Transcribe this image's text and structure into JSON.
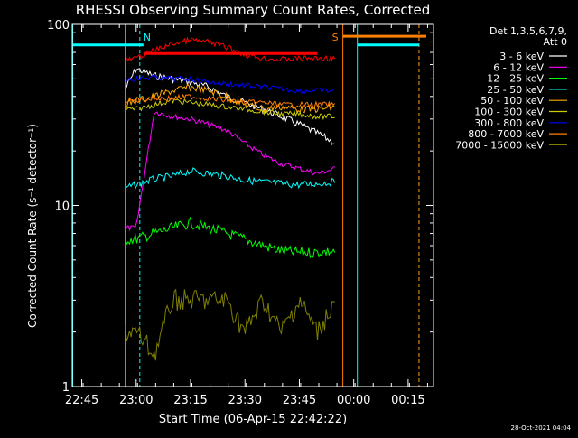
{
  "chart_data": {
    "type": "line",
    "title": "RHESSI Observing Summary Count Rates, Corrected",
    "xlabel": "Start Time (06-Apr-15 22:42:22)",
    "ylabel": "Corrected Count Rate (s⁻¹ detector⁻¹)",
    "yscale": "log",
    "ylim": [
      1,
      100
    ],
    "xlim": [
      "22:42:22",
      "00:22:00"
    ],
    "x_ticks": [
      "22:45",
      "23:00",
      "23:15",
      "23:30",
      "23:45",
      "00:00",
      "00:15"
    ],
    "y_ticks": [
      "1",
      "10",
      "100"
    ],
    "legend_header": [
      "Det 1,3,5,6,7,9,",
      "Att 0"
    ],
    "legend_position": "top-right",
    "footer_date": "28-Oct-2021 04:04",
    "markers": [
      {
        "label": "N",
        "color": "#00ffff",
        "time": "23:01"
      },
      {
        "label": "S",
        "color": "#ff8000",
        "time": "23:57"
      }
    ],
    "vertical_lines": [
      {
        "time": "22:42:30",
        "color": "#00ffff",
        "style": "solid"
      },
      {
        "time": "22:57",
        "color": "#00ffff",
        "style": "solid"
      },
      {
        "time": "22:57",
        "color": "#ff8000",
        "style": "solid"
      },
      {
        "time": "23:01",
        "color": "#00ffff",
        "style": "dashed"
      },
      {
        "time": "23:57",
        "color": "#ff8000",
        "style": "solid"
      },
      {
        "time": "00:01",
        "color": "#00ffff",
        "style": "solid"
      },
      {
        "time": "00:18",
        "color": "#00ffff",
        "style": "dashed"
      },
      {
        "time": "00:18",
        "color": "#ff8000",
        "style": "dashed"
      }
    ],
    "flags": [
      {
        "color": "#00ffff",
        "y": 77,
        "from": "22:42:30",
        "to": "23:02"
      },
      {
        "color": "#00ffff",
        "y": 77,
        "from": "00:01",
        "to": "00:18"
      },
      {
        "color": "#ff8000",
        "y": 86,
        "from": "23:57",
        "to": "00:20"
      },
      {
        "color": "#ff0000",
        "y": 69,
        "from": "23:02",
        "to": "23:50"
      }
    ],
    "series": [
      {
        "name": "3 - 6 keV",
        "color": "#ffffff",
        "x": [
          "22:57",
          "23:00",
          "23:05",
          "23:10",
          "23:15",
          "23:20",
          "23:25",
          "23:30",
          "23:35",
          "23:40",
          "23:45",
          "23:50",
          "23:55"
        ],
        "y": [
          44,
          57,
          52,
          50,
          48,
          45,
          40,
          37,
          34,
          31,
          28,
          25,
          22
        ]
      },
      {
        "name": "6 - 12 keV",
        "color": "#ff00ff",
        "x": [
          "22:57",
          "23:00",
          "23:05",
          "23:10",
          "23:15",
          "23:20",
          "23:25",
          "23:30",
          "23:35",
          "23:40",
          "23:45",
          "23:50",
          "23:55"
        ],
        "y": [
          7.5,
          7.5,
          33,
          31,
          30,
          28,
          26,
          22,
          19,
          17,
          16,
          15,
          16
        ]
      },
      {
        "name": "12 - 25 keV",
        "color": "#00ff00",
        "x": [
          "22:57",
          "23:00",
          "23:05",
          "23:10",
          "23:15",
          "23:20",
          "23:25",
          "23:30",
          "23:35",
          "23:40",
          "23:45",
          "23:50",
          "23:55"
        ],
        "y": [
          6.5,
          6.5,
          7.0,
          7.5,
          8.0,
          7.5,
          7.0,
          6.5,
          6.0,
          5.6,
          5.5,
          5.5,
          5.6
        ]
      },
      {
        "name": "25 - 50 keV",
        "color": "#00ffff",
        "x": [
          "22:57",
          "23:00",
          "23:05",
          "23:10",
          "23:15",
          "23:20",
          "23:25",
          "23:30",
          "23:35",
          "23:40",
          "23:45",
          "23:50",
          "23:55"
        ],
        "y": [
          12.5,
          13,
          14,
          14.5,
          15.5,
          15,
          14.5,
          13.8,
          13.5,
          13.2,
          13,
          13.2,
          13.5
        ]
      },
      {
        "name": "50 - 100 keV",
        "color": "#ffaa00",
        "x": [
          "22:57",
          "23:00",
          "23:05",
          "23:10",
          "23:15",
          "23:20",
          "23:25",
          "23:30",
          "23:35",
          "23:40",
          "23:45",
          "23:50",
          "23:55"
        ],
        "y": [
          36,
          38,
          40,
          43,
          45,
          43,
          40,
          36,
          34,
          35,
          34,
          34,
          35
        ]
      },
      {
        "name": "100 - 300 keV",
        "color": "#cccc00",
        "x": [
          "22:57",
          "23:00",
          "23:05",
          "23:10",
          "23:15",
          "23:20",
          "23:25",
          "23:30",
          "23:35",
          "23:40",
          "23:45",
          "23:50",
          "23:55"
        ],
        "y": [
          34,
          34,
          36,
          38,
          37,
          36,
          35,
          34,
          33,
          32,
          32,
          31,
          31
        ]
      },
      {
        "name": "300 - 800 keV",
        "color": "#0000ff",
        "x": [
          "22:57",
          "23:00",
          "23:05",
          "23:10",
          "23:15",
          "23:20",
          "23:25",
          "23:30",
          "23:35",
          "23:40",
          "23:45",
          "23:50",
          "23:55"
        ],
        "y": [
          50,
          50,
          51,
          50,
          50,
          48,
          47,
          46,
          45,
          44,
          43,
          43,
          43
        ]
      },
      {
        "name": "800 - 7000 keV",
        "color": "#ff8000",
        "x": [
          "22:57",
          "23:00",
          "23:05",
          "23:10",
          "23:15",
          "23:20",
          "23:25",
          "23:30",
          "23:35",
          "23:40",
          "23:45",
          "23:50",
          "23:55"
        ],
        "y": [
          38,
          38,
          39,
          39,
          40,
          39,
          38,
          37,
          37,
          36,
          36,
          36,
          36
        ]
      },
      {
        "name": "7000 - 15000 keV",
        "color": "#808000",
        "x": [
          "22:57",
          "23:00",
          "23:05",
          "23:10",
          "23:15",
          "23:20",
          "23:25",
          "23:30",
          "23:35",
          "23:40",
          "23:45",
          "23:50",
          "23:55"
        ],
        "y": [
          2,
          2,
          1.5,
          3,
          3,
          3,
          3,
          2,
          3,
          2,
          3,
          2,
          3
        ]
      }
    ],
    "extra_series": [
      {
        "name": "",
        "color": "#ff0000",
        "x": [
          "22:57",
          "23:00",
          "23:05",
          "23:10",
          "23:15",
          "23:20",
          "23:25",
          "23:30",
          "23:35",
          "23:40",
          "23:45",
          "23:50",
          "23:55"
        ],
        "y": [
          63,
          65,
          72,
          78,
          82,
          80,
          75,
          68,
          65,
          64,
          65,
          65,
          65
        ]
      }
    ]
  }
}
